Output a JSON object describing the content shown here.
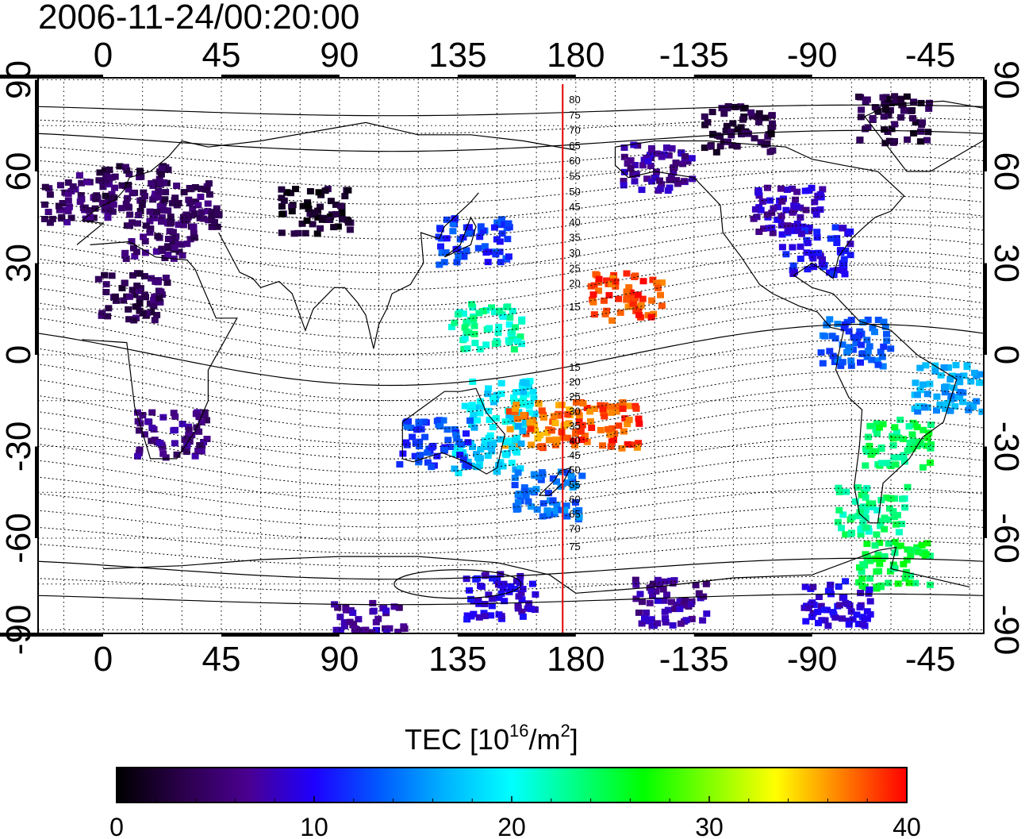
{
  "title": "2006-11-24/00:20:00",
  "map": {
    "top_lon_labels": [
      "0",
      "45",
      "90",
      "135",
      "180",
      "-135",
      "-90",
      "-45"
    ],
    "bottom_lon_labels": [
      "0",
      "45",
      "90",
      "135",
      "180",
      "-135",
      "-90",
      "-45"
    ],
    "left_lat_labels": [
      "90",
      "60",
      "30",
      "0",
      "-30",
      "-60",
      "-90"
    ],
    "right_lat_labels": [
      "90",
      "60",
      "30",
      "0",
      "-30",
      "-60",
      "-90"
    ],
    "projection": "equirectangular, central meridian 165",
    "grid": "dotted, every 15 degrees",
    "marker_line": {
      "lon": 175,
      "color": "#e60000"
    },
    "mag_lat_north": [
      "80",
      "75",
      "70",
      "65",
      "60",
      "55",
      "50",
      "45",
      "40",
      "35",
      "30",
      "25",
      "20",
      "15"
    ],
    "mag_lat_south": [
      "15",
      "20",
      "25",
      "30",
      "35",
      "40",
      "45",
      "50",
      "55",
      "60",
      "65",
      "70",
      "75"
    ]
  },
  "colorbar": {
    "label_main": "TEC  [10",
    "label_exp1": "16",
    "label_mid": "/m",
    "label_exp2": "2",
    "label_end": "]",
    "min": 0,
    "max": 40,
    "ticks": [
      "0",
      "10",
      "20",
      "30",
      "40"
    ],
    "colormap": [
      "#000000",
      "#2a004a",
      "#4a0090",
      "#1e00ff",
      "#005aff",
      "#00b4ff",
      "#00ffff",
      "#00ff80",
      "#00ff00",
      "#80ff00",
      "#ffff00",
      "#ff8000",
      "#ff0000"
    ]
  },
  "tec_patches": [
    {
      "lon": -10,
      "lat": 52,
      "tec": 5
    },
    {
      "lon": 10,
      "lat": 55,
      "tec": 4
    },
    {
      "lon": 30,
      "lat": 50,
      "tec": 5
    },
    {
      "lon": 20,
      "lat": 40,
      "tec": 5
    },
    {
      "lon": 80,
      "lat": 48,
      "tec": 2
    },
    {
      "lon": 25,
      "lat": -25,
      "tec": 6
    },
    {
      "lon": 10,
      "lat": 20,
      "tec": 4
    },
    {
      "lon": 140,
      "lat": 38,
      "tec": 12
    },
    {
      "lon": 145,
      "lat": 10,
      "tec": 22
    },
    {
      "lon": 150,
      "lat": -15,
      "tec": 19
    },
    {
      "lon": 165,
      "lat": -22,
      "tec": 37
    },
    {
      "lon": -170,
      "lat": -22,
      "tec": 38
    },
    {
      "lon": -162,
      "lat": 20,
      "tec": 38
    },
    {
      "lon": 145,
      "lat": -30,
      "tec": 18
    },
    {
      "lon": 168,
      "lat": -45,
      "tec": 14
    },
    {
      "lon": 125,
      "lat": -28,
      "tec": 12
    },
    {
      "lon": -150,
      "lat": 62,
      "tec": 7
    },
    {
      "lon": -100,
      "lat": 48,
      "tec": 8
    },
    {
      "lon": -90,
      "lat": 35,
      "tec": 10
    },
    {
      "lon": -75,
      "lat": 5,
      "tec": 13
    },
    {
      "lon": -58,
      "lat": -28,
      "tec": 24
    },
    {
      "lon": -68,
      "lat": -50,
      "tec": 23
    },
    {
      "lon": -60,
      "lat": -68,
      "tec": 25
    },
    {
      "lon": -40,
      "lat": -10,
      "tec": 16
    },
    {
      "lon": -120,
      "lat": 75,
      "tec": 3
    },
    {
      "lon": -60,
      "lat": 78,
      "tec": 3
    },
    {
      "lon": 100,
      "lat": -88,
      "tec": 7
    },
    {
      "lon": -145,
      "lat": -80,
      "tec": 7
    },
    {
      "lon": 150,
      "lat": -78,
      "tec": 9
    },
    {
      "lon": -82,
      "lat": -80,
      "tec": 9
    }
  ]
}
